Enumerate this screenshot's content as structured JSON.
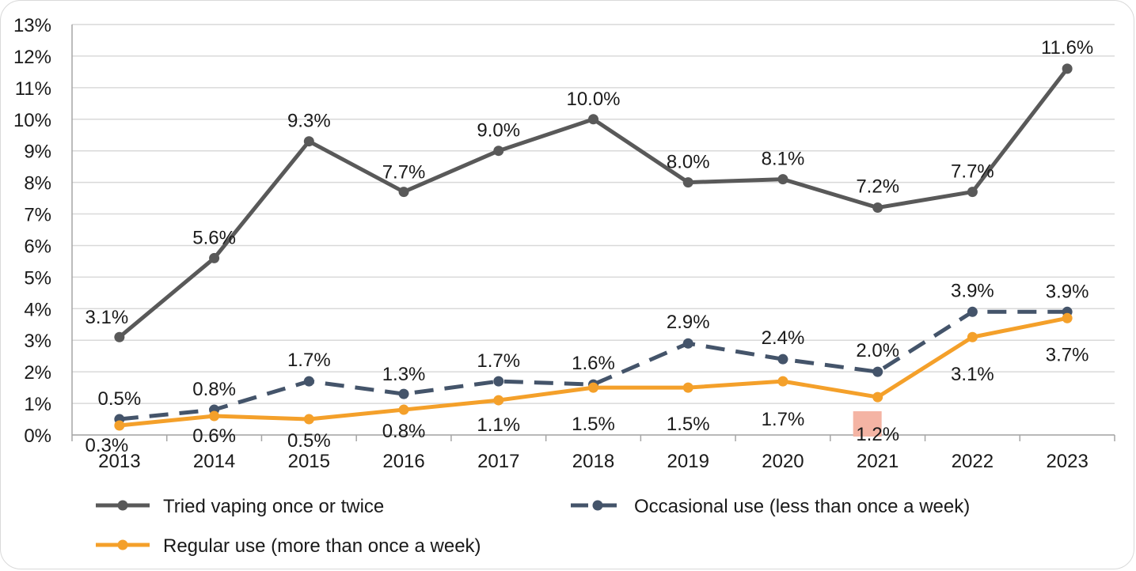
{
  "chart_data": {
    "type": "line",
    "categories": [
      "2013",
      "2014",
      "2015",
      "2016",
      "2017",
      "2018",
      "2019",
      "2020",
      "2021",
      "2022",
      "2023"
    ],
    "ylim": [
      0,
      13
    ],
    "yticks": [
      "0%",
      "1%",
      "2%",
      "3%",
      "4%",
      "5%",
      "6%",
      "7%",
      "8%",
      "9%",
      "10%",
      "11%",
      "12%",
      "13%"
    ],
    "grid": true,
    "legend_position": "bottom",
    "series": [
      {
        "name": "Tried vaping once or twice",
        "values": [
          3.1,
          5.6,
          9.3,
          7.7,
          9.0,
          10.0,
          8.0,
          8.1,
          7.2,
          7.7,
          11.6
        ],
        "labels": [
          "3.1%",
          "5.6%",
          "9.3%",
          "7.7%",
          "9.0%",
          "10.0%",
          "8.0%",
          "8.1%",
          "7.2%",
          "7.7%",
          "11.6%"
        ],
        "color": "#595959",
        "style": "solid"
      },
      {
        "name": "Occasional use (less than once a week)",
        "values": [
          0.5,
          0.8,
          1.7,
          1.3,
          1.7,
          1.6,
          2.9,
          2.4,
          2.0,
          3.9,
          3.9
        ],
        "labels": [
          "0.5%",
          "0.8%",
          "1.7%",
          "1.3%",
          "1.7%",
          "1.6%",
          "2.9%",
          "2.4%",
          "2.0%",
          "3.9%",
          "3.9%"
        ],
        "color": "#44546a",
        "style": "dashed"
      },
      {
        "name": "Regular use (more than once a week)",
        "values": [
          0.3,
          0.6,
          0.5,
          0.8,
          1.1,
          1.5,
          1.5,
          1.7,
          1.2,
          3.1,
          3.7
        ],
        "labels": [
          "0.3%",
          "0.6%",
          "0.5%",
          "0.8%",
          "1.1%",
          "1.5%",
          "1.5%",
          "1.7%",
          "1.2%",
          "3.1%",
          "3.7%"
        ],
        "color": "#f4a02a",
        "style": "solid"
      }
    ],
    "highlight_color": "#f4b4a4",
    "highlight_label": {
      "series": 2,
      "index": 8
    }
  }
}
